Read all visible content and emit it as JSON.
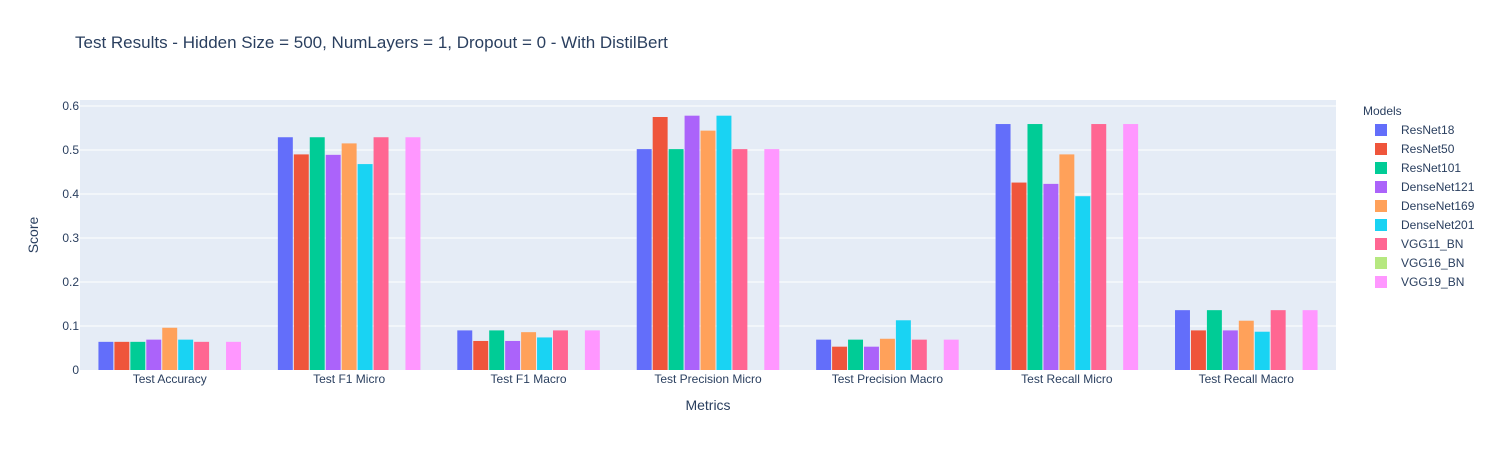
{
  "chart_data": {
    "type": "bar",
    "title": "Test Results - Hidden Size = 500, NumLayers = 1, Dropout = 0 - With DistilBert",
    "xlabel": "Metrics",
    "ylabel": "Score",
    "ylim": [
      0,
      0.6
    ],
    "yticks": [
      "0",
      "0.1",
      "0.2",
      "0.3",
      "0.4",
      "0.5",
      "0.6"
    ],
    "grid": true,
    "legend_title": "Models",
    "legend_position": "right",
    "categories": [
      "Test Accuracy",
      "Test F1 Micro",
      "Test F1 Macro",
      "Test Precision Micro",
      "Test Precision Macro",
      "Test Recall Micro",
      "Test Recall Macro"
    ],
    "series": [
      {
        "name": "ResNet18",
        "color": "#636efa",
        "values": [
          0.064,
          0.529,
          0.09,
          0.502,
          0.069,
          0.559,
          0.136
        ]
      },
      {
        "name": "ResNet50",
        "color": "#EF553B",
        "values": [
          0.064,
          0.49,
          0.066,
          0.575,
          0.053,
          0.426,
          0.09
        ]
      },
      {
        "name": "ResNet101",
        "color": "#00cc96",
        "values": [
          0.064,
          0.529,
          0.09,
          0.502,
          0.069,
          0.559,
          0.136
        ]
      },
      {
        "name": "DenseNet121",
        "color": "#ab63fa",
        "values": [
          0.069,
          0.489,
          0.066,
          0.578,
          0.053,
          0.423,
          0.09
        ]
      },
      {
        "name": "DenseNet169",
        "color": "#FFA15A",
        "values": [
          0.096,
          0.515,
          0.086,
          0.544,
          0.071,
          0.49,
          0.112
        ]
      },
      {
        "name": "DenseNet201",
        "color": "#19d3f3",
        "values": [
          0.069,
          0.468,
          0.074,
          0.578,
          0.113,
          0.395,
          0.087
        ]
      },
      {
        "name": "VGG11_BN",
        "color": "#FF6692",
        "values": [
          0.064,
          0.529,
          0.09,
          0.502,
          0.069,
          0.559,
          0.136
        ]
      },
      {
        "name": "VGG16_BN",
        "color": "#B6E880",
        "values": [
          0,
          0,
          0,
          0,
          0,
          0,
          0
        ]
      },
      {
        "name": "VGG19_BN",
        "color": "#FF97FF",
        "values": [
          0.064,
          0.529,
          0.09,
          0.502,
          0.069,
          0.559,
          0.136
        ]
      }
    ],
    "colors": {
      "plot_bg": "#e5ecf6",
      "grid": "#ffffff",
      "text": "#2a3f5f"
    }
  }
}
